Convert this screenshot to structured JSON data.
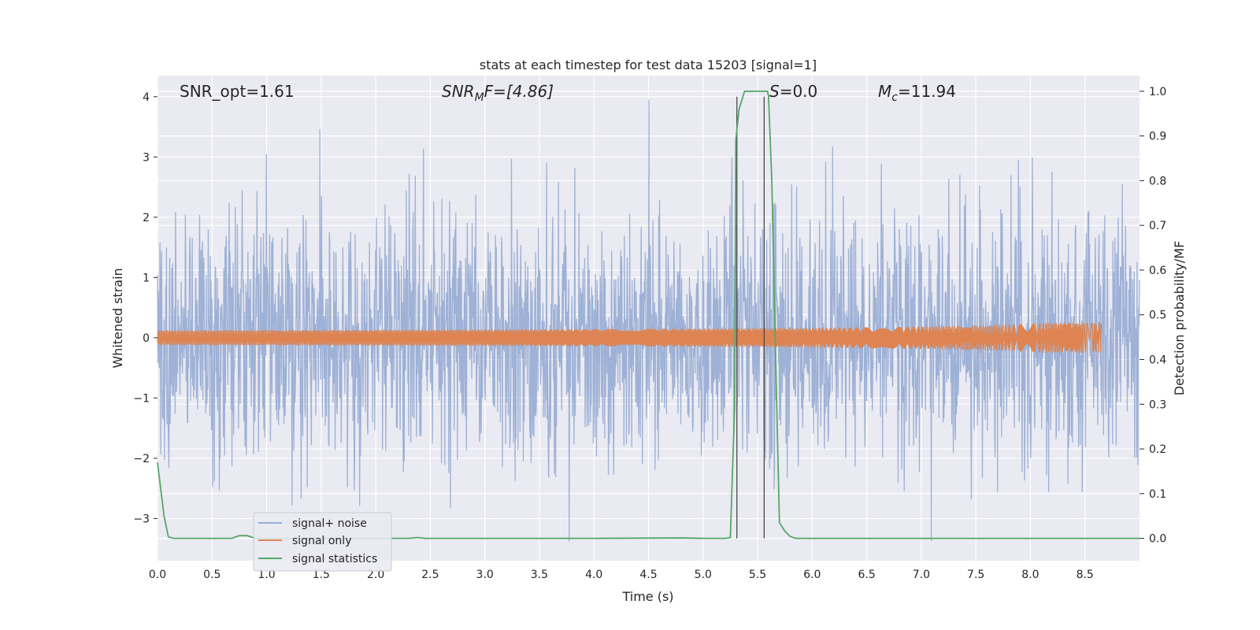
{
  "chart_data": {
    "type": "line",
    "title": "stats at each timestep for test data 15203 [signal=1]",
    "xlabel": "Time (s)",
    "ylabel_left": "Whitened strain",
    "ylabel_right": "Detection probability/MF",
    "xlim": [
      0,
      9.0
    ],
    "ylim_left": [
      -3.7,
      4.35
    ],
    "ylim_right": [
      -0.05,
      1.035
    ],
    "x_ticks": [
      "0.0",
      "0.5",
      "1.0",
      "1.5",
      "2.0",
      "2.5",
      "3.0",
      "3.5",
      "4.0",
      "4.5",
      "5.0",
      "5.5",
      "6.0",
      "6.5",
      "7.0",
      "7.5",
      "8.0",
      "8.5"
    ],
    "x_tick_values": [
      0,
      0.5,
      1.0,
      1.5,
      2.0,
      2.5,
      3.0,
      3.5,
      4.0,
      4.5,
      5.0,
      5.5,
      6.0,
      6.5,
      7.0,
      7.5,
      8.0,
      8.5
    ],
    "y_ticks_left": [
      "−3",
      "−2",
      "−1",
      "0",
      "1",
      "2",
      "3",
      "4"
    ],
    "y_tick_values_left": [
      -3,
      -2,
      -1,
      0,
      1,
      2,
      3,
      4
    ],
    "y_ticks_right": [
      "0.0",
      "0.1",
      "0.2",
      "0.3",
      "0.4",
      "0.5",
      "0.6",
      "0.7",
      "0.8",
      "0.9",
      "1.0"
    ],
    "y_tick_values_right": [
      0,
      0.1,
      0.2,
      0.3,
      0.4,
      0.5,
      0.6,
      0.7,
      0.8,
      0.9,
      1.0
    ],
    "grid": true,
    "legend_position": "lower-left",
    "annotations": [
      {
        "id": "snr-opt",
        "text": "SNR_opt=1.61"
      },
      {
        "id": "snr-mf",
        "text_main": "SNR",
        "text_sub": "M",
        "text_tail": "F=[4.86]"
      },
      {
        "id": "s-val",
        "text_main": "S",
        "text_tail": "=0.0"
      },
      {
        "id": "mc-val",
        "text_main": "M",
        "text_sub": "c",
        "text_tail": "=11.94"
      }
    ],
    "series": [
      {
        "name": "signal+ noise",
        "color": "#9aaed4",
        "axis": "left",
        "description_stats": {
          "typical_amplitude": 1.5,
          "peak_max": 4.0,
          "peak_min": -3.4
        }
      },
      {
        "name": "signal only",
        "color": "#dd8452",
        "axis": "left",
        "chirp_end_time": 8.65,
        "chirp_end_amplitude": 0.25
      },
      {
        "name": "signal statistics",
        "color": "#55a868",
        "axis": "right",
        "x": [
          0.0,
          0.06,
          0.1,
          0.15,
          0.3,
          0.5,
          0.68,
          0.75,
          0.82,
          0.9,
          1.0,
          1.5,
          2.0,
          2.3,
          2.38,
          2.45,
          3.0,
          4.0,
          4.8,
          5.0,
          5.2,
          5.25,
          5.29,
          5.3,
          5.33,
          5.38,
          5.5,
          5.59,
          5.6,
          5.63,
          5.67,
          5.7,
          5.75,
          5.8,
          5.85,
          6.0,
          7.0,
          8.0,
          9.0
        ],
        "y": [
          0.17,
          0.05,
          0.003,
          0.0,
          0.0,
          0.0,
          0.0,
          0.006,
          0.006,
          0.0,
          0.0,
          0.0,
          0.0,
          0.0,
          0.002,
          0.0,
          0.0,
          0.0,
          0.001,
          0.0,
          0.0,
          0.002,
          0.3,
          0.89,
          0.96,
          1.0,
          1.0,
          1.0,
          0.99,
          0.8,
          0.35,
          0.035,
          0.016,
          0.004,
          0.0,
          0.0,
          0.0,
          0.0,
          0.0
        ]
      }
    ],
    "vertical_lines": [
      5.31,
      5.56
    ],
    "colors": {
      "background": "#eaeaf2",
      "grid": "#ffffff",
      "vline": "#4a4a4a"
    }
  }
}
